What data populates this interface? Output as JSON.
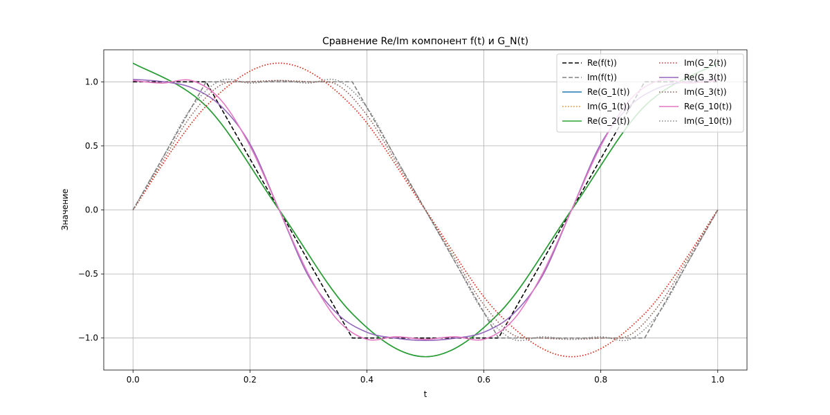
{
  "chart_data": {
    "type": "line",
    "title": "Сравнение Re/Im компонент f(t) и G_N(t)",
    "xlabel": "t",
    "ylabel": "Значение",
    "xlim": [
      -0.05,
      1.05
    ],
    "ylim": [
      -1.25,
      1.25
    ],
    "xticks": [
      0.0,
      0.2,
      0.4,
      0.6,
      0.8,
      1.0
    ],
    "xtick_labels": [
      "0.0",
      "0.2",
      "0.4",
      "0.6",
      "0.8",
      "1.0"
    ],
    "yticks": [
      -1.0,
      -0.5,
      0.0,
      0.5,
      1.0
    ],
    "ytick_labels": [
      "−1.0",
      "−0.5",
      "0.0",
      "0.5",
      "1.0"
    ],
    "grid": true,
    "legend_position": "top-right",
    "legend_columns": 2,
    "series": [
      {
        "name": "Re(f(t))",
        "color": "#000000",
        "style": "dashed",
        "x": [
          0,
          0.125,
          0.375,
          0.625,
          0.875,
          1.0
        ],
        "y": [
          1,
          1,
          -1,
          -1,
          1,
          1
        ]
      },
      {
        "name": "Im(f(t))",
        "color": "#808080",
        "style": "dashed",
        "x": [
          0,
          0.125,
          0.375,
          0.625,
          0.875,
          1.0
        ],
        "y": [
          0,
          1,
          1,
          -1,
          -1,
          0
        ]
      },
      {
        "name": "Re(G_1(t))",
        "color": "#1f77b4",
        "style": "solid",
        "x": [
          0,
          0.125,
          0.25,
          0.375,
          0.5,
          0.625,
          0.75,
          0.875,
          1.0
        ],
        "y": [
          1.146,
          0.81,
          0,
          -0.81,
          -1.146,
          -0.81,
          0,
          0.81,
          1.146
        ]
      },
      {
        "name": "Im(G_1(t))",
        "color": "#ff7f0e",
        "style": "dotted",
        "x": [
          0,
          0.125,
          0.25,
          0.375,
          0.5,
          0.625,
          0.75,
          0.875,
          1.0
        ],
        "y": [
          0,
          0.81,
          1.146,
          0.81,
          0,
          -0.81,
          -1.146,
          -0.81,
          0
        ]
      },
      {
        "name": "Re(G_2(t))",
        "color": "#2ca02c",
        "style": "solid",
        "x": [
          0,
          0.125,
          0.25,
          0.375,
          0.5,
          0.625,
          0.75,
          0.875,
          1.0
        ],
        "y": [
          1.146,
          0.81,
          0,
          -0.81,
          -1.146,
          -0.81,
          0,
          0.81,
          1.146
        ]
      },
      {
        "name": "Im(G_2(t))",
        "color": "#d62728",
        "style": "dotted",
        "x": [
          0,
          0.125,
          0.25,
          0.375,
          0.5,
          0.625,
          0.75,
          0.875,
          1.0
        ],
        "y": [
          0,
          0.81,
          1.146,
          0.81,
          0,
          -0.81,
          -1.146,
          -0.81,
          0
        ]
      },
      {
        "name": "Re(G_3(t))",
        "color": "#9467bd",
        "style": "solid",
        "x": [
          0,
          0.05,
          0.1,
          0.15,
          0.2,
          0.25,
          0.3,
          0.35,
          0.4,
          0.45,
          0.5,
          0.55,
          0.6,
          0.65,
          0.7,
          0.75,
          0.8,
          0.85,
          0.9,
          0.95,
          1.0
        ],
        "y": [
          1.019,
          1.002,
          0.955,
          0.813,
          0.516,
          0,
          -0.516,
          -0.813,
          -0.955,
          -1.002,
          -1.019,
          -1.002,
          -0.955,
          -0.813,
          -0.516,
          0,
          0.516,
          0.813,
          0.955,
          1.002,
          1.019
        ]
      },
      {
        "name": "Im(G_3(t))",
        "color": "#8c564b",
        "style": "dotted",
        "x": [
          0,
          0.05,
          0.1,
          0.15,
          0.2,
          0.25,
          0.3,
          0.35,
          0.4,
          0.45,
          0.5,
          0.55,
          0.6,
          0.65,
          0.7,
          0.75,
          0.8,
          0.85,
          0.9,
          0.95,
          1.0
        ],
        "y": [
          0,
          0.375,
          0.74,
          0.975,
          1.0,
          1.01,
          1.0,
          0.975,
          0.74,
          0.375,
          0,
          -0.375,
          -0.74,
          -0.975,
          -1.0,
          -1.01,
          -1.0,
          -0.975,
          -0.74,
          -0.375,
          0
        ]
      },
      {
        "name": "Re(G_10(t))",
        "color": "#e377c2",
        "style": "solid",
        "x": [
          0,
          0.05,
          0.1,
          0.15,
          0.2,
          0.25,
          0.3,
          0.35,
          0.4,
          0.45,
          0.5,
          0.55,
          0.6,
          0.65,
          0.7,
          0.75,
          0.8,
          0.85,
          0.9,
          0.95,
          1.0
        ],
        "y": [
          1.01,
          0.99,
          1.01,
          0.86,
          0.5,
          0,
          -0.5,
          -0.86,
          -1.01,
          -0.99,
          -1.01,
          -0.99,
          -1.01,
          -0.86,
          -0.5,
          0,
          0.5,
          0.86,
          1.01,
          0.99,
          1.01
        ]
      },
      {
        "name": "Im(G_10(t))",
        "color": "#7f7f7f",
        "style": "dotted",
        "x": [
          0,
          0.05,
          0.1,
          0.15,
          0.2,
          0.25,
          0.3,
          0.35,
          0.4,
          0.45,
          0.5,
          0.55,
          0.6,
          0.65,
          0.7,
          0.75,
          0.8,
          0.85,
          0.9,
          0.95,
          1.0
        ],
        "y": [
          0,
          0.4,
          0.8,
          1.01,
          0.99,
          1.01,
          0.99,
          1.01,
          0.8,
          0.4,
          0,
          -0.4,
          -0.8,
          -1.01,
          -0.99,
          -1.01,
          -0.99,
          -1.01,
          -0.8,
          -0.4,
          0
        ]
      }
    ]
  }
}
